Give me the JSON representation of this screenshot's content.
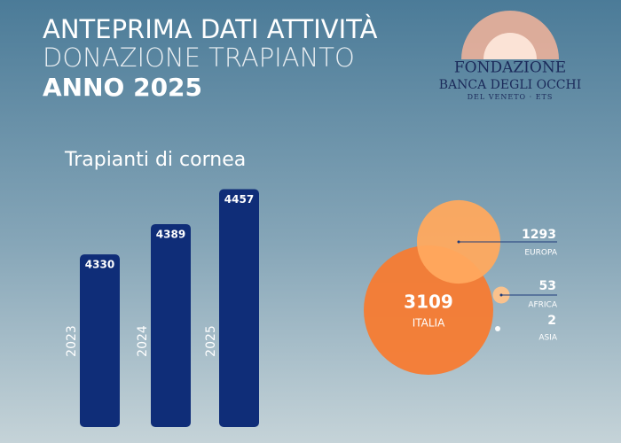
{
  "header": {
    "title": [
      "ANTEPRIMA DATI ATTIVITÀ",
      "DONAZIONE TRAPIANTO",
      "ANNO 2025"
    ],
    "logo": [
      "FONDAZIONE",
      "BANCA DEGLI OCCHI",
      "DEL VENETO · ETS"
    ]
  },
  "chart_data": [
    {
      "type": "bar",
      "title": "Trapianti di cornea",
      "categories": [
        "2023",
        "2024",
        "2025"
      ],
      "values": [
        4330,
        4389,
        4457
      ],
      "color": "#0f2d78",
      "ylim": [
        3994,
        4470
      ]
    },
    {
      "type": "bubble",
      "categories": [
        "ITALIA",
        "EUROPA",
        "AFRICA",
        "ASIA"
      ],
      "values": [
        3109,
        1293,
        53,
        2
      ],
      "colors": [
        "#f77b32",
        "#ffa95e",
        "#ffc38a",
        "#ffffff"
      ]
    }
  ]
}
